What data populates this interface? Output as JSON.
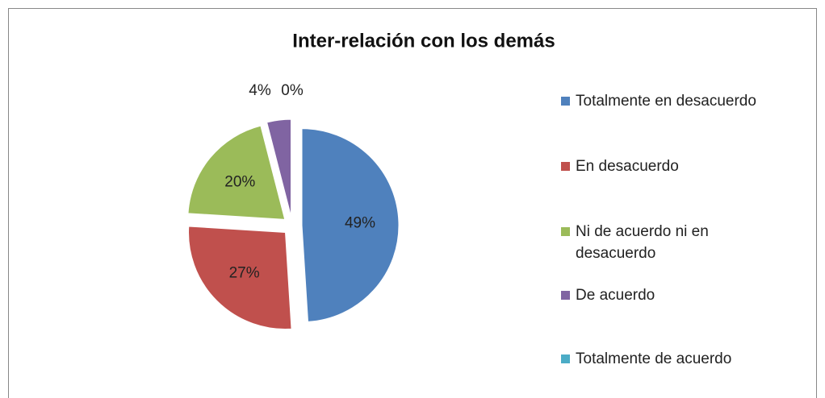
{
  "chart_data": {
    "type": "pie",
    "title": "Inter-relación con los demás",
    "categories": [
      "Totalmente en desacuerdo",
      "En desacuerdo",
      "Ni de acuerdo ni en desacuerdo",
      "De acuerdo",
      "Totalmente de acuerdo"
    ],
    "values": [
      49,
      27,
      20,
      4,
      0
    ],
    "value_labels": [
      "49%",
      "27%",
      "20%",
      "4%",
      "0%"
    ],
    "colors": [
      "#4f81bd",
      "#c0504d",
      "#9bbb59",
      "#8064a2",
      "#4bacc6"
    ],
    "legend": "right"
  }
}
